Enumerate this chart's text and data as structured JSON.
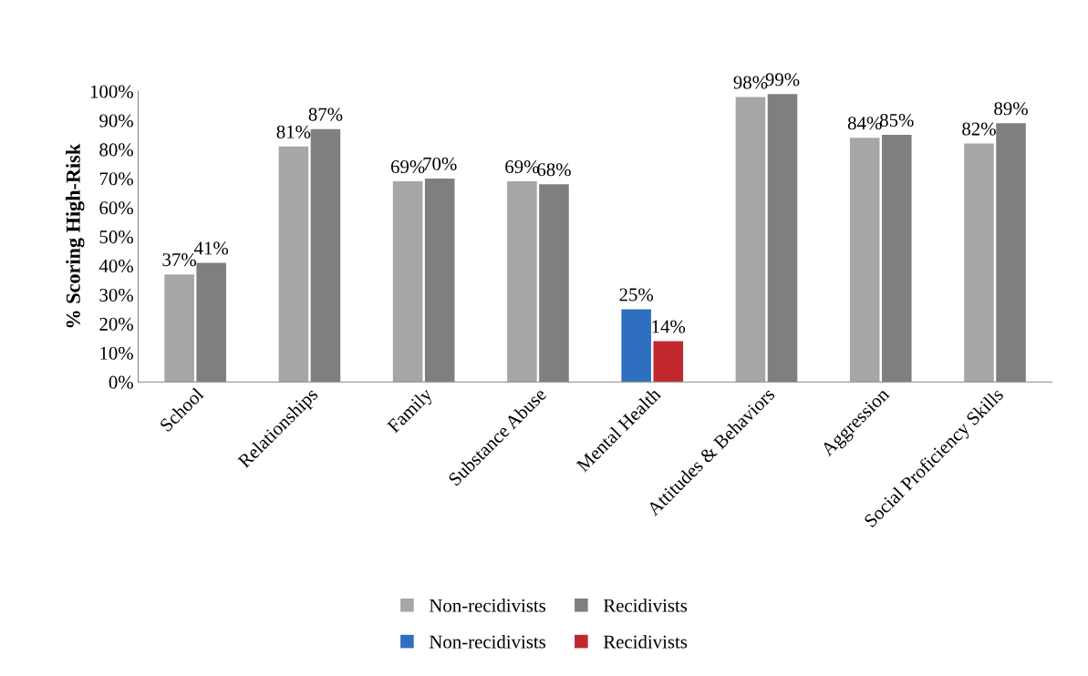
{
  "chart_data": {
    "type": "bar",
    "ylabel": "% Scoring High-Risk",
    "categories": [
      "School",
      "Relationships",
      "Family",
      "Substance Abuse",
      "Mental Health",
      "Attitudes & Behaviors",
      "Aggression",
      "Social Proficiency Skills"
    ],
    "series": [
      {
        "name": "Non-recidivists",
        "color": "#a6a6a6",
        "values": [
          37,
          81,
          69,
          69,
          null,
          98,
          84,
          82
        ],
        "value_labels": [
          "37%",
          "81%",
          "69%",
          "69%",
          null,
          "98%",
          "84%",
          "82%"
        ]
      },
      {
        "name": "Recidivists",
        "color": "#7f7f7f",
        "values": [
          41,
          87,
          70,
          68,
          null,
          99,
          85,
          89
        ],
        "value_labels": [
          "41%",
          "87%",
          "70%",
          "68%",
          null,
          "99%",
          "85%",
          "89%"
        ]
      },
      {
        "name": "Non-recidivists",
        "color": "#2e6fc0",
        "values": [
          null,
          null,
          null,
          null,
          25,
          null,
          null,
          null
        ],
        "value_labels": [
          null,
          null,
          null,
          null,
          "25%",
          null,
          null,
          null
        ]
      },
      {
        "name": "Recidivists",
        "color": "#c0282d",
        "values": [
          null,
          null,
          null,
          null,
          14,
          null,
          null,
          null
        ],
        "value_labels": [
          null,
          null,
          null,
          null,
          "14%",
          null,
          null,
          null
        ]
      }
    ],
    "ylim": [
      0,
      100
    ],
    "yticks": [
      {
        "value": 0,
        "label": "0%"
      },
      {
        "value": 10,
        "label": "10%"
      },
      {
        "value": 20,
        "label": "20%"
      },
      {
        "value": 30,
        "label": "30%"
      },
      {
        "value": 40,
        "label": "40%"
      },
      {
        "value": 50,
        "label": "50%"
      },
      {
        "value": 60,
        "label": "60%"
      },
      {
        "value": 70,
        "label": "70%"
      },
      {
        "value": 80,
        "label": "80%"
      },
      {
        "value": 90,
        "label": "90%"
      },
      {
        "value": 100,
        "label": "100%"
      }
    ],
    "grid": false,
    "legend": "bottom"
  }
}
